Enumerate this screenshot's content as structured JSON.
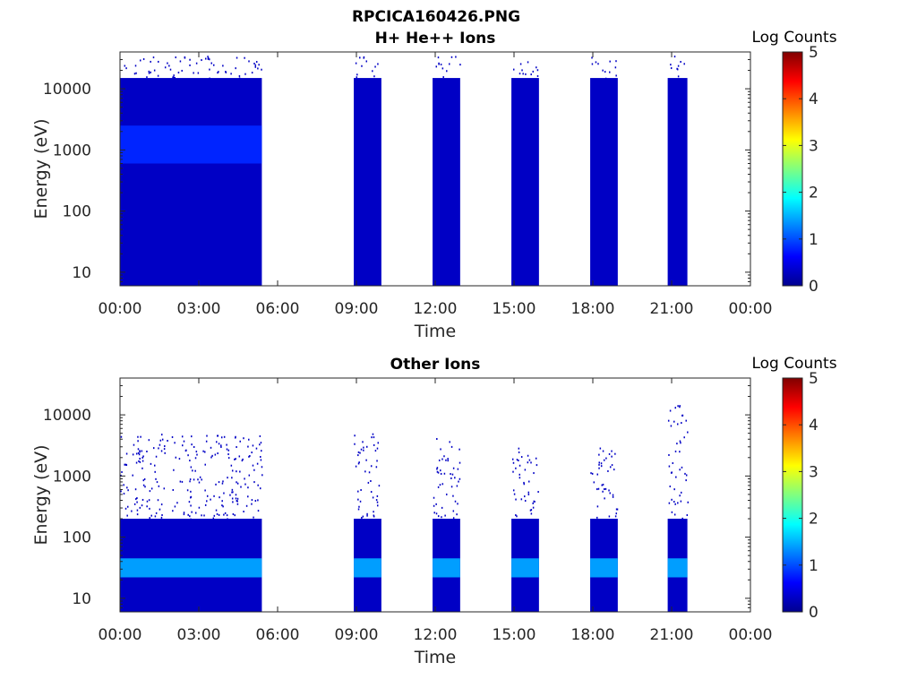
{
  "figure": {
    "title": "RPCICA160426.PNG"
  },
  "chart_data": [
    {
      "type": "heatmap",
      "title": "H+ He++ Ions",
      "xlabel": "Time",
      "ylabel": "Energy (eV)",
      "x_ticks": [
        "00:00",
        "03:00",
        "06:00",
        "09:00",
        "12:00",
        "15:00",
        "18:00",
        "21:00",
        "00:00"
      ],
      "xlim_hours": [
        0,
        24
      ],
      "y_scale": "log",
      "ylim": [
        6,
        40000
      ],
      "y_ticks": [
        10,
        100,
        1000,
        10000
      ],
      "y_tick_labels": [
        "10",
        "100",
        "1000",
        "10000"
      ],
      "colorbar": {
        "label": "Log Counts",
        "range": [
          0,
          5
        ],
        "ticks": [
          "0",
          "1",
          "2",
          "3",
          "4",
          "5"
        ],
        "colormap": "jet"
      },
      "segments": [
        {
          "start_h": 0.0,
          "end_h": 5.4,
          "top_eV": 35000
        },
        {
          "start_h": 8.9,
          "end_h": 9.95,
          "top_eV": 35000
        },
        {
          "start_h": 11.9,
          "end_h": 12.95,
          "top_eV": 35000
        },
        {
          "start_h": 14.9,
          "end_h": 15.95,
          "top_eV": 35000
        },
        {
          "start_h": 17.9,
          "end_h": 18.95,
          "top_eV": 35000
        },
        {
          "start_h": 20.85,
          "end_h": 21.6,
          "top_eV": 35000
        }
      ],
      "bands": [
        {
          "label": "main",
          "low_eV": 6,
          "high_eV": 15000,
          "log_counts": 0.3
        },
        {
          "label": "enhanced",
          "low_eV": 600,
          "high_eV": 2500,
          "log_counts": 0.8,
          "start_h": 0.0,
          "end_h": 5.4
        }
      ]
    },
    {
      "type": "heatmap",
      "title": "Other Ions",
      "xlabel": "Time",
      "ylabel": "Energy (eV)",
      "x_ticks": [
        "00:00",
        "03:00",
        "06:00",
        "09:00",
        "12:00",
        "15:00",
        "18:00",
        "21:00",
        "00:00"
      ],
      "xlim_hours": [
        0,
        24
      ],
      "y_scale": "log",
      "ylim": [
        6,
        40000
      ],
      "y_ticks": [
        10,
        100,
        1000,
        10000
      ],
      "y_tick_labels": [
        "10",
        "100",
        "1000",
        "10000"
      ],
      "colorbar": {
        "label": "Log Counts",
        "range": [
          0,
          5
        ],
        "ticks": [
          "0",
          "1",
          "2",
          "3",
          "4",
          "5"
        ],
        "colormap": "jet"
      },
      "segments": [
        {
          "start_h": 0.0,
          "end_h": 5.4,
          "top_eV": 5000
        },
        {
          "start_h": 8.9,
          "end_h": 9.95,
          "top_eV": 5000
        },
        {
          "start_h": 11.9,
          "end_h": 12.95,
          "top_eV": 5000
        },
        {
          "start_h": 14.9,
          "end_h": 15.95,
          "top_eV": 3000
        },
        {
          "start_h": 17.9,
          "end_h": 18.95,
          "top_eV": 3000
        },
        {
          "start_h": 20.85,
          "end_h": 21.6,
          "top_eV": 15000
        }
      ],
      "bands": [
        {
          "label": "low-energy",
          "low_eV": 6,
          "high_eV": 200,
          "log_counts": 0.3
        },
        {
          "label": "peak",
          "low_eV": 22,
          "high_eV": 45,
          "log_counts": 1.4
        }
      ]
    }
  ]
}
